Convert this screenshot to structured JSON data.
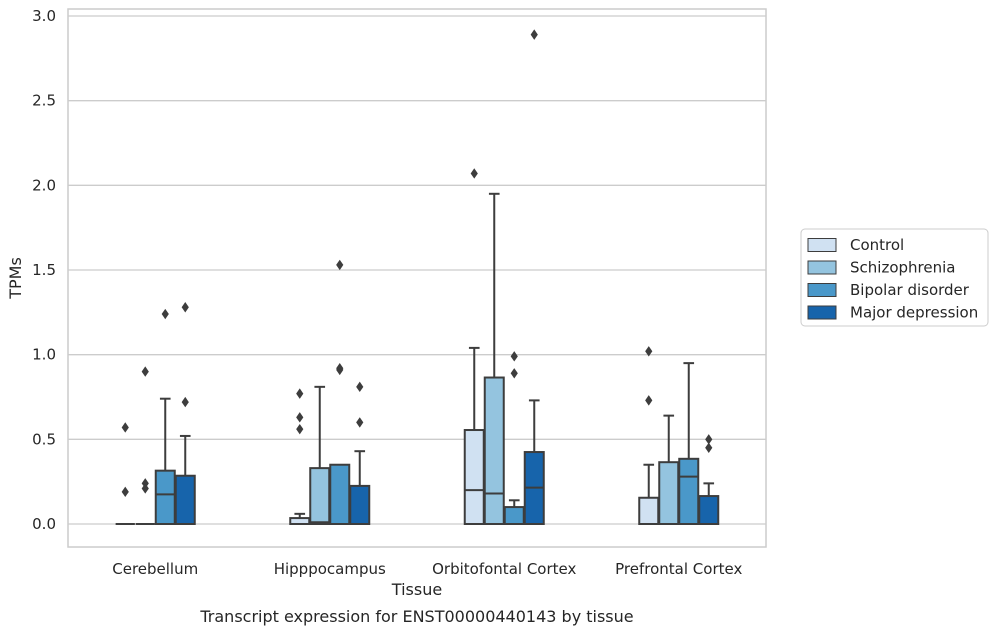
{
  "chart_data": {
    "type": "box",
    "xlabel": "Tissue",
    "ylabel": "TPMs",
    "caption": "Transcript expression for ENST00000440143 by tissue",
    "categories": [
      "Cerebellum",
      "Hipppocampus",
      "Orbitofontal Cortex",
      "Prefrontal Cortex"
    ],
    "ylim": [
      -0.14,
      3.05
    ],
    "yticks": [
      0.0,
      0.5,
      1.0,
      1.5,
      2.0,
      2.5,
      3.0
    ],
    "ytick_labels": [
      "0.0",
      "0.5",
      "1.0",
      "1.5",
      "2.0",
      "2.5",
      "3.0"
    ],
    "grid": "horizontal",
    "legend_position": "right-outside",
    "series": [
      {
        "name": "Control",
        "color": "#d0e1f2",
        "boxes": [
          {
            "category": "Cerebellum",
            "q1": 0.0,
            "median": 0.0,
            "q3": 0.0,
            "whisker_low": 0.0,
            "whisker_high": 0.0,
            "outliers": [
              0.57,
              0.19
            ]
          },
          {
            "category": "Hipppocampus",
            "q1": 0.0,
            "median": 0.0,
            "q3": 0.035,
            "whisker_low": 0.0,
            "whisker_high": 0.06,
            "outliers": [
              0.77,
              0.63,
              0.56
            ]
          },
          {
            "category": "Orbitofontal Cortex",
            "q1": 0.0,
            "median": 0.2,
            "q3": 0.555,
            "whisker_low": 0.0,
            "whisker_high": 1.04,
            "outliers": [
              2.07
            ]
          },
          {
            "category": "Prefrontal Cortex",
            "q1": 0.0,
            "median": 0.0,
            "q3": 0.155,
            "whisker_low": 0.0,
            "whisker_high": 0.35,
            "outliers": [
              1.02,
              0.73
            ]
          }
        ]
      },
      {
        "name": "Schizophrenia",
        "color": "#94c4df",
        "boxes": [
          {
            "category": "Cerebellum",
            "q1": 0.0,
            "median": 0.0,
            "q3": 0.0,
            "whisker_low": 0.0,
            "whisker_high": 0.0,
            "outliers": [
              0.9,
              0.24,
              0.21
            ]
          },
          {
            "category": "Hipppocampus",
            "q1": 0.0,
            "median": 0.01,
            "q3": 0.33,
            "whisker_low": 0.0,
            "whisker_high": 0.81,
            "outliers": []
          },
          {
            "category": "Orbitofontal Cortex",
            "q1": 0.0,
            "median": 0.18,
            "q3": 0.865,
            "whisker_low": 0.0,
            "whisker_high": 1.95,
            "outliers": []
          },
          {
            "category": "Prefrontal Cortex",
            "q1": 0.0,
            "median": 0.0,
            "q3": 0.365,
            "whisker_low": 0.0,
            "whisker_high": 0.64,
            "outliers": []
          }
        ]
      },
      {
        "name": "Bipolar disorder",
        "color": "#4a98c9",
        "boxes": [
          {
            "category": "Cerebellum",
            "q1": 0.0,
            "median": 0.175,
            "q3": 0.315,
            "whisker_low": 0.0,
            "whisker_high": 0.74,
            "outliers": [
              1.24
            ]
          },
          {
            "category": "Hipppocampus",
            "q1": 0.0,
            "median": 0.0,
            "q3": 0.35,
            "whisker_low": 0.0,
            "whisker_high": 0.35,
            "outliers": [
              1.53,
              0.92,
              0.91
            ]
          },
          {
            "category": "Orbitofontal Cortex",
            "q1": 0.0,
            "median": 0.0,
            "q3": 0.1,
            "whisker_low": 0.0,
            "whisker_high": 0.14,
            "outliers": [
              0.99,
              0.89
            ]
          },
          {
            "category": "Prefrontal Cortex",
            "q1": 0.0,
            "median": 0.28,
            "q3": 0.385,
            "whisker_low": 0.0,
            "whisker_high": 0.95,
            "outliers": []
          }
        ]
      },
      {
        "name": "Major depression",
        "color": "#1764ab",
        "boxes": [
          {
            "category": "Cerebellum",
            "q1": 0.0,
            "median": 0.0,
            "q3": 0.285,
            "whisker_low": 0.0,
            "whisker_high": 0.52,
            "outliers": [
              1.28,
              0.72
            ]
          },
          {
            "category": "Hipppocampus",
            "q1": 0.0,
            "median": 0.0,
            "q3": 0.225,
            "whisker_low": 0.0,
            "whisker_high": 0.43,
            "outliers": [
              0.81,
              0.6
            ]
          },
          {
            "category": "Orbitofontal Cortex",
            "q1": 0.0,
            "median": 0.215,
            "q3": 0.425,
            "whisker_low": 0.0,
            "whisker_high": 0.73,
            "outliers": [
              2.89
            ]
          },
          {
            "category": "Prefrontal Cortex",
            "q1": 0.0,
            "median": 0.0,
            "q3": 0.165,
            "whisker_low": 0.0,
            "whisker_high": 0.24,
            "outliers": [
              0.5,
              0.45
            ]
          }
        ]
      }
    ]
  }
}
